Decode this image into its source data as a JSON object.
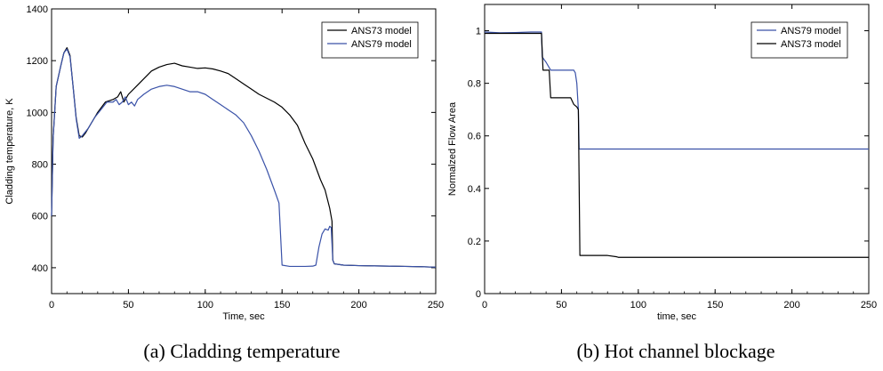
{
  "colors": {
    "black": "#000000",
    "blue": "#3a52a8"
  },
  "charts": [
    {
      "id": "a",
      "caption": "(a) Cladding temperature",
      "chart_data": {
        "type": "line",
        "xlabel": "Time, sec",
        "ylabel": "Cladding temperature, K",
        "xlim": [
          0,
          250
        ],
        "ylim": [
          300,
          1400
        ],
        "xticks": [
          0,
          50,
          100,
          150,
          200,
          250
        ],
        "yticks": [
          400,
          600,
          800,
          1000,
          1200,
          1400
        ],
        "legend_position": "top-right",
        "series": [
          {
            "name": "ANS73 model",
            "color": "#000000",
            "points": [
              [
                0,
                600
              ],
              [
                1,
                900
              ],
              [
                3,
                1100
              ],
              [
                6,
                1180
              ],
              [
                8,
                1230
              ],
              [
                10,
                1250
              ],
              [
                12,
                1220
              ],
              [
                14,
                1100
              ],
              [
                16,
                980
              ],
              [
                18,
                910
              ],
              [
                20,
                905
              ],
              [
                22,
                920
              ],
              [
                26,
                960
              ],
              [
                30,
                1000
              ],
              [
                35,
                1040
              ],
              [
                40,
                1050
              ],
              [
                43,
                1060
              ],
              [
                45,
                1080
              ],
              [
                47,
                1040
              ],
              [
                50,
                1070
              ],
              [
                55,
                1100
              ],
              [
                60,
                1130
              ],
              [
                65,
                1160
              ],
              [
                70,
                1175
              ],
              [
                75,
                1185
              ],
              [
                80,
                1190
              ],
              [
                85,
                1180
              ],
              [
                90,
                1175
              ],
              [
                95,
                1170
              ],
              [
                100,
                1172
              ],
              [
                105,
                1168
              ],
              [
                110,
                1160
              ],
              [
                115,
                1150
              ],
              [
                120,
                1130
              ],
              [
                125,
                1110
              ],
              [
                130,
                1090
              ],
              [
                135,
                1070
              ],
              [
                140,
                1055
              ],
              [
                145,
                1040
              ],
              [
                150,
                1020
              ],
              [
                155,
                990
              ],
              [
                160,
                950
              ],
              [
                165,
                880
              ],
              [
                170,
                820
              ],
              [
                175,
                740
              ],
              [
                178,
                700
              ],
              [
                181,
                630
              ],
              [
                182.5,
                580
              ],
              [
                183,
                430
              ],
              [
                184,
                415
              ],
              [
                190,
                410
              ],
              [
                200,
                408
              ],
              [
                210,
                407
              ],
              [
                220,
                406
              ],
              [
                230,
                405
              ],
              [
                240,
                404
              ],
              [
                250,
                402
              ]
            ]
          },
          {
            "name": "ANS79 model",
            "color": "#3a52a8",
            "points": [
              [
                0,
                600
              ],
              [
                1,
                900
              ],
              [
                3,
                1100
              ],
              [
                6,
                1180
              ],
              [
                8,
                1230
              ],
              [
                10,
                1245
              ],
              [
                12,
                1215
              ],
              [
                14,
                1100
              ],
              [
                16,
                975
              ],
              [
                18,
                900
              ],
              [
                20,
                910
              ],
              [
                24,
                940
              ],
              [
                28,
                980
              ],
              [
                32,
                1010
              ],
              [
                36,
                1040
              ],
              [
                40,
                1040
              ],
              [
                42,
                1050
              ],
              [
                44,
                1030
              ],
              [
                46,
                1040
              ],
              [
                48,
                1060
              ],
              [
                50,
                1030
              ],
              [
                52,
                1040
              ],
              [
                54,
                1025
              ],
              [
                56,
                1050
              ],
              [
                60,
                1070
              ],
              [
                65,
                1090
              ],
              [
                70,
                1100
              ],
              [
                75,
                1105
              ],
              [
                80,
                1100
              ],
              [
                85,
                1090
              ],
              [
                90,
                1080
              ],
              [
                95,
                1080
              ],
              [
                100,
                1070
              ],
              [
                105,
                1050
              ],
              [
                110,
                1030
              ],
              [
                115,
                1010
              ],
              [
                120,
                990
              ],
              [
                125,
                960
              ],
              [
                130,
                910
              ],
              [
                135,
                850
              ],
              [
                140,
                780
              ],
              [
                145,
                700
              ],
              [
                148,
                650
              ],
              [
                150,
                410
              ],
              [
                155,
                405
              ],
              [
                160,
                405
              ],
              [
                165,
                405
              ],
              [
                170,
                406
              ],
              [
                172,
                410
              ],
              [
                174,
                480
              ],
              [
                176,
                530
              ],
              [
                178,
                550
              ],
              [
                180,
                545
              ],
              [
                181,
                560
              ],
              [
                182,
                555
              ],
              [
                183,
                430
              ],
              [
                184,
                415
              ],
              [
                190,
                410
              ],
              [
                200,
                408
              ],
              [
                210,
                407
              ],
              [
                220,
                406
              ],
              [
                230,
                405
              ],
              [
                240,
                404
              ],
              [
                250,
                402
              ]
            ]
          }
        ]
      }
    },
    {
      "id": "b",
      "caption": "(b) Hot channel blockage",
      "chart_data": {
        "type": "line",
        "xlabel": "time, sec",
        "ylabel": "Normalzed Flow Area",
        "xlim": [
          0,
          250
        ],
        "ylim": [
          0,
          1.1
        ],
        "xticks": [
          0,
          50,
          100,
          150,
          200,
          250
        ],
        "yticks": [
          0,
          0.2,
          0.4,
          0.6,
          0.8,
          1
        ],
        "legend_position": "top-right",
        "series": [
          {
            "name": "ANS79 model",
            "color": "#3a52a8",
            "points": [
              [
                0,
                0.995
              ],
              [
                10,
                0.992
              ],
              [
                20,
                0.993
              ],
              [
                30,
                0.995
              ],
              [
                37,
                0.995
              ],
              [
                37.5,
                0.9
              ],
              [
                40,
                0.88
              ],
              [
                42,
                0.86
              ],
              [
                43,
                0.85
              ],
              [
                58,
                0.85
              ],
              [
                59,
                0.84
              ],
              [
                60,
                0.8
              ],
              [
                61,
                0.7
              ],
              [
                61.5,
                0.55
              ],
              [
                100,
                0.55
              ],
              [
                150,
                0.55
              ],
              [
                200,
                0.55
              ],
              [
                250,
                0.55
              ]
            ]
          },
          {
            "name": "ANS73 model",
            "color": "#000000",
            "points": [
              [
                0,
                0.99
              ],
              [
                10,
                0.99
              ],
              [
                20,
                0.99
              ],
              [
                30,
                0.99
              ],
              [
                37,
                0.99
              ],
              [
                38,
                0.85
              ],
              [
                42,
                0.85
              ],
              [
                43,
                0.745
              ],
              [
                56,
                0.745
              ],
              [
                58,
                0.72
              ],
              [
                60,
                0.71
              ],
              [
                61,
                0.7
              ],
              [
                62,
                0.145
              ],
              [
                80,
                0.145
              ],
              [
                86,
                0.14
              ],
              [
                87,
                0.138
              ],
              [
                120,
                0.138
              ],
              [
                150,
                0.138
              ],
              [
                200,
                0.138
              ],
              [
                250,
                0.138
              ]
            ]
          }
        ]
      }
    }
  ]
}
